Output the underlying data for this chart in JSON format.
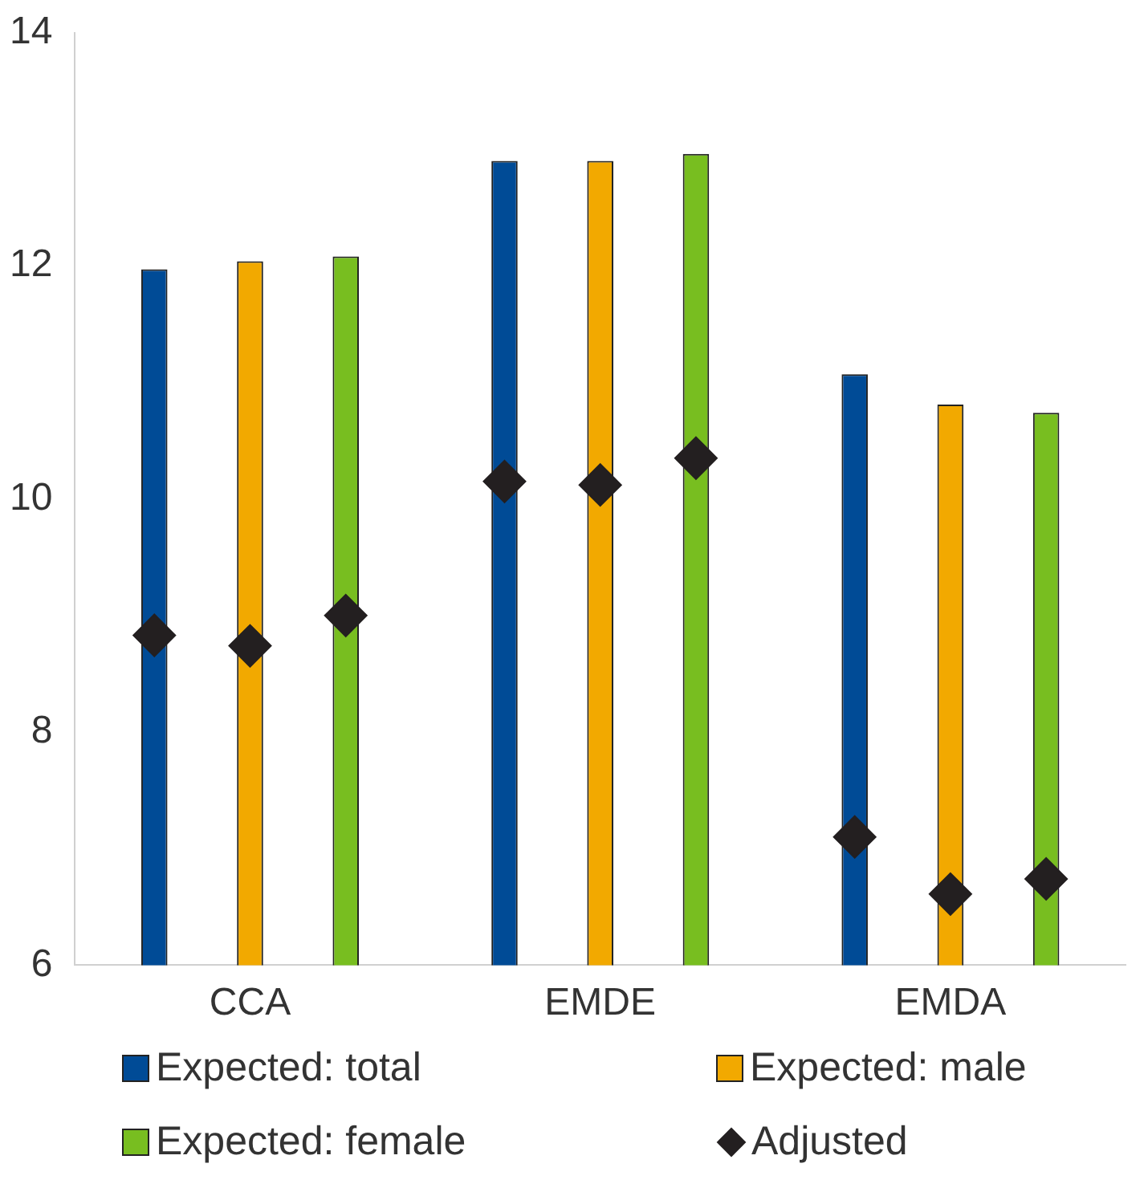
{
  "chart_data": {
    "type": "bar",
    "categories": [
      "CCA",
      "EMDE",
      "EMDA"
    ],
    "series": [
      {
        "name": "Expected: total",
        "color": "#004b96",
        "values": [
          11.97,
          12.9,
          11.07
        ]
      },
      {
        "name": "Expected: male",
        "color": "#f2a900",
        "values": [
          12.04,
          12.9,
          10.81
        ]
      },
      {
        "name": "Expected: female",
        "color": "#78be20",
        "values": [
          12.08,
          12.96,
          10.74
        ]
      },
      {
        "name": "Adjusted",
        "type": "scatter",
        "color": "#231f20",
        "x": [
          "CCA",
          "CCA",
          "CCA",
          "EMDE",
          "EMDE",
          "EMDE",
          "EMDA",
          "EMDA",
          "EMDA"
        ],
        "values": [
          8.83,
          8.74,
          9.0,
          10.15,
          10.12,
          10.35,
          7.1,
          6.61,
          6.74
        ]
      }
    ],
    "ylim": [
      6,
      14
    ],
    "yticks": [
      6,
      8,
      10,
      12,
      14
    ],
    "grid": false,
    "legend": "bottom",
    "marker": "diamond"
  }
}
